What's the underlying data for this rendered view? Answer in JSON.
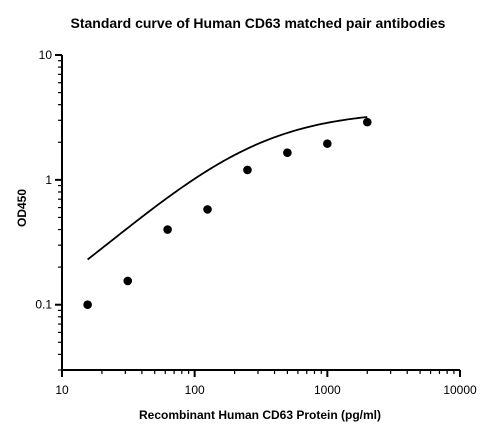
{
  "chart_data": {
    "type": "scatter",
    "title": "Standard curve of Human CD63 matched pair antibodies",
    "xlabel": "Recombinant Human CD63 Protein (pg/ml)",
    "ylabel": "OD450",
    "xscale": "log",
    "yscale": "log",
    "xlim": [
      10,
      10000
    ],
    "ylim": [
      0.03,
      10
    ],
    "x_ticks": [
      10,
      100,
      1000,
      10000
    ],
    "x_tick_labels": [
      "10",
      "100",
      "1000",
      "10000"
    ],
    "y_ticks": [
      0.1,
      1,
      10
    ],
    "y_tick_labels": [
      "0.1",
      "1",
      "10"
    ],
    "grid": false,
    "legend": "none",
    "series": [
      {
        "points": [
          {
            "x": 15.6,
            "y": 0.1
          },
          {
            "x": 31.3,
            "y": 0.155
          },
          {
            "x": 62.5,
            "y": 0.4
          },
          {
            "x": 125,
            "y": 0.58
          },
          {
            "x": 250,
            "y": 1.2
          },
          {
            "x": 500,
            "y": 1.65
          },
          {
            "x": 1000,
            "y": 1.95
          },
          {
            "x": 2000,
            "y": 2.9
          }
        ]
      }
    ],
    "fit_curve": {
      "type": "4PL",
      "bottom": 0.028,
      "top": 3.6,
      "ec50": 260,
      "hill": 1.0
    },
    "colors": {
      "points": "#000000",
      "line": "#000000"
    }
  }
}
